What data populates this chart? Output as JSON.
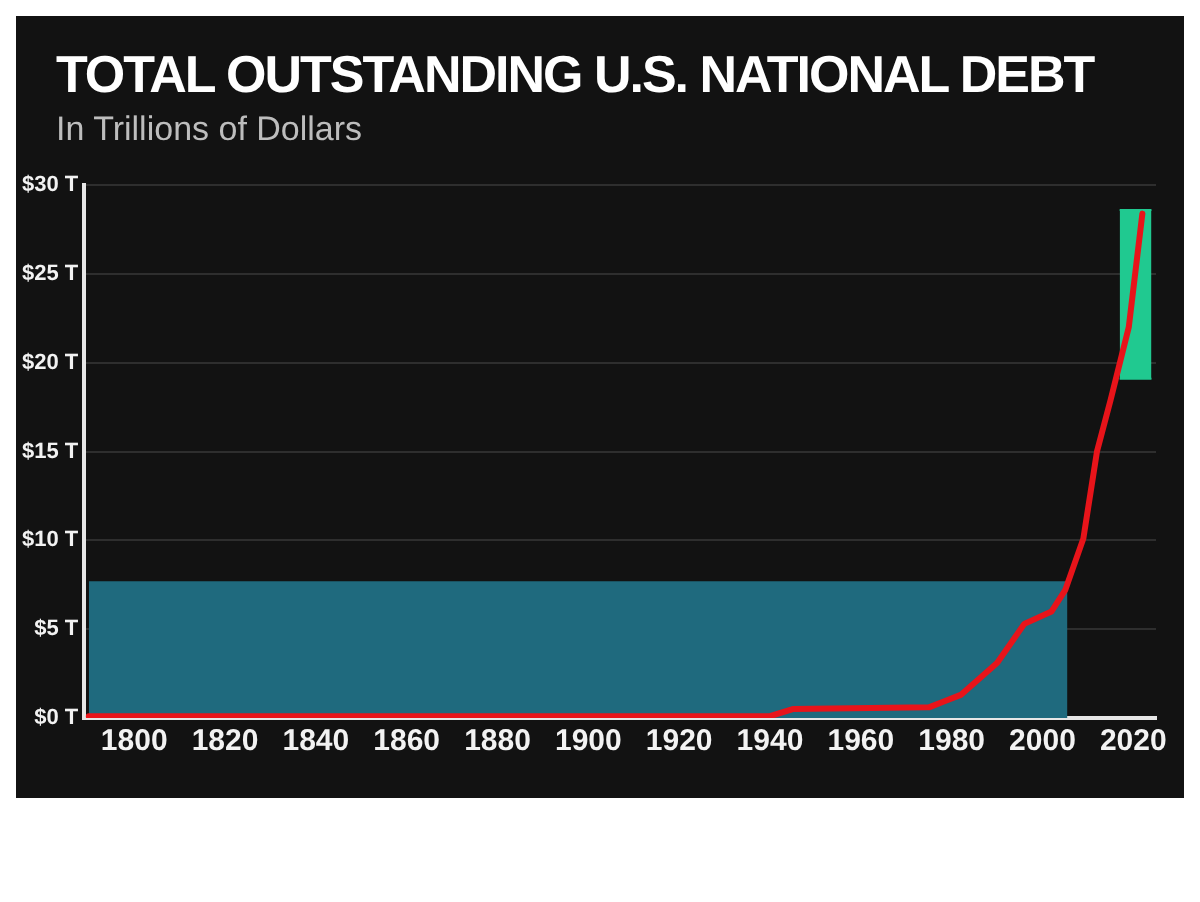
{
  "chart_data": {
    "type": "line",
    "title": "TOTAL OUTSTANDING U.S. NATIONAL DEBT",
    "subtitle": "In Trillions of Dollars",
    "series": [
      {
        "type": "area",
        "color": "#1f6a7e",
        "x": [
          1790,
          2005.5
        ],
        "values": [
          7.7,
          7.7
        ]
      },
      {
        "type": "area",
        "color": "#20c990",
        "x": [
          2017,
          2024
        ],
        "values": [
          null,
          null
        ],
        "lower": [
          19.1,
          19.1
        ],
        "upper": [
          28.6,
          28.6
        ]
      },
      {
        "type": "line",
        "color": "#e8141a",
        "x": [
          1790,
          1940,
          1945,
          1975,
          1978,
          1982,
          1990,
          1996,
          2002,
          2005,
          2009,
          2012,
          2015,
          2019,
          2022
        ],
        "values": [
          0.1,
          0.1,
          0.5,
          0.6,
          0.9,
          1.3,
          3.1,
          5.3,
          6.0,
          7.2,
          10.1,
          15.0,
          17.9,
          22.0,
          28.4
        ]
      }
    ],
    "xlim": [
      1789,
      2025
    ],
    "xticks": [
      1800,
      1820,
      1840,
      1860,
      1880,
      1900,
      1920,
      1940,
      1960,
      1980,
      2000,
      2020
    ],
    "ylim": [
      0,
      30
    ],
    "yticks": [
      {
        "value": 0,
        "label": "$0 T"
      },
      {
        "value": 5,
        "label": "$5 T"
      },
      {
        "value": 10,
        "label": "$10 T"
      },
      {
        "value": 15,
        "label": "$15 T"
      },
      {
        "value": 20,
        "label": "$20 T"
      },
      {
        "value": 25,
        "label": "$25 T"
      },
      {
        "value": 30,
        "label": "$30 T"
      }
    ],
    "grid": "y",
    "legend": false,
    "marker": "none",
    "line_style": "solid"
  }
}
